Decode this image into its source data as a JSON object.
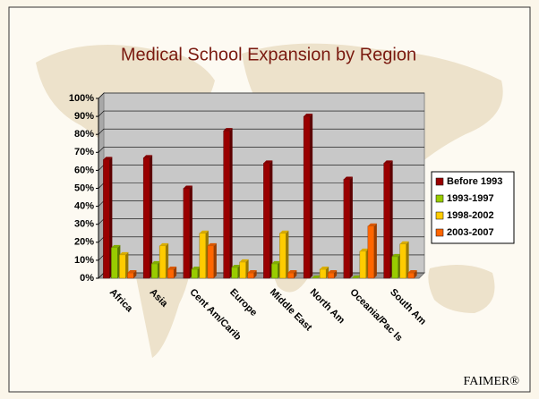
{
  "chart_data": {
    "type": "bar",
    "title": "Medical School Expansion by Region",
    "footer": "FAIMER®",
    "categories": [
      "Africa",
      "Asia",
      "Cent Am/Carib",
      "Europe",
      "Middle East",
      "North Am",
      "Oceania/Pac Is",
      "South Am"
    ],
    "series": [
      {
        "name": "Before 1993",
        "color": "#990000",
        "values": [
          66,
          67,
          50,
          82,
          64,
          90,
          55,
          64
        ]
      },
      {
        "name": "1993-1997",
        "color": "#99cc00",
        "values": [
          17,
          8,
          5,
          6,
          8,
          0,
          0,
          12
        ]
      },
      {
        "name": "1998-2002",
        "color": "#ffcc00",
        "values": [
          13,
          18,
          25,
          9,
          25,
          5,
          15,
          19
        ]
      },
      {
        "name": "2003-2007",
        "color": "#ff6600",
        "values": [
          3,
          5,
          18,
          3,
          3,
          3,
          29,
          3
        ]
      }
    ],
    "ylim": [
      0,
      100
    ],
    "yticks": [
      {
        "value": 0,
        "label": "0%"
      },
      {
        "value": 10,
        "label": "10%"
      },
      {
        "value": 20,
        "label": "20%"
      },
      {
        "value": 30,
        "label": "30%"
      },
      {
        "value": 40,
        "label": "40%"
      },
      {
        "value": 50,
        "label": "50%"
      },
      {
        "value": 60,
        "label": "60%"
      },
      {
        "value": 70,
        "label": "70%"
      },
      {
        "value": 80,
        "label": "80%"
      },
      {
        "value": 90,
        "label": "90%"
      },
      {
        "value": 100,
        "label": "100%"
      }
    ],
    "grid": true,
    "legend": "right"
  }
}
